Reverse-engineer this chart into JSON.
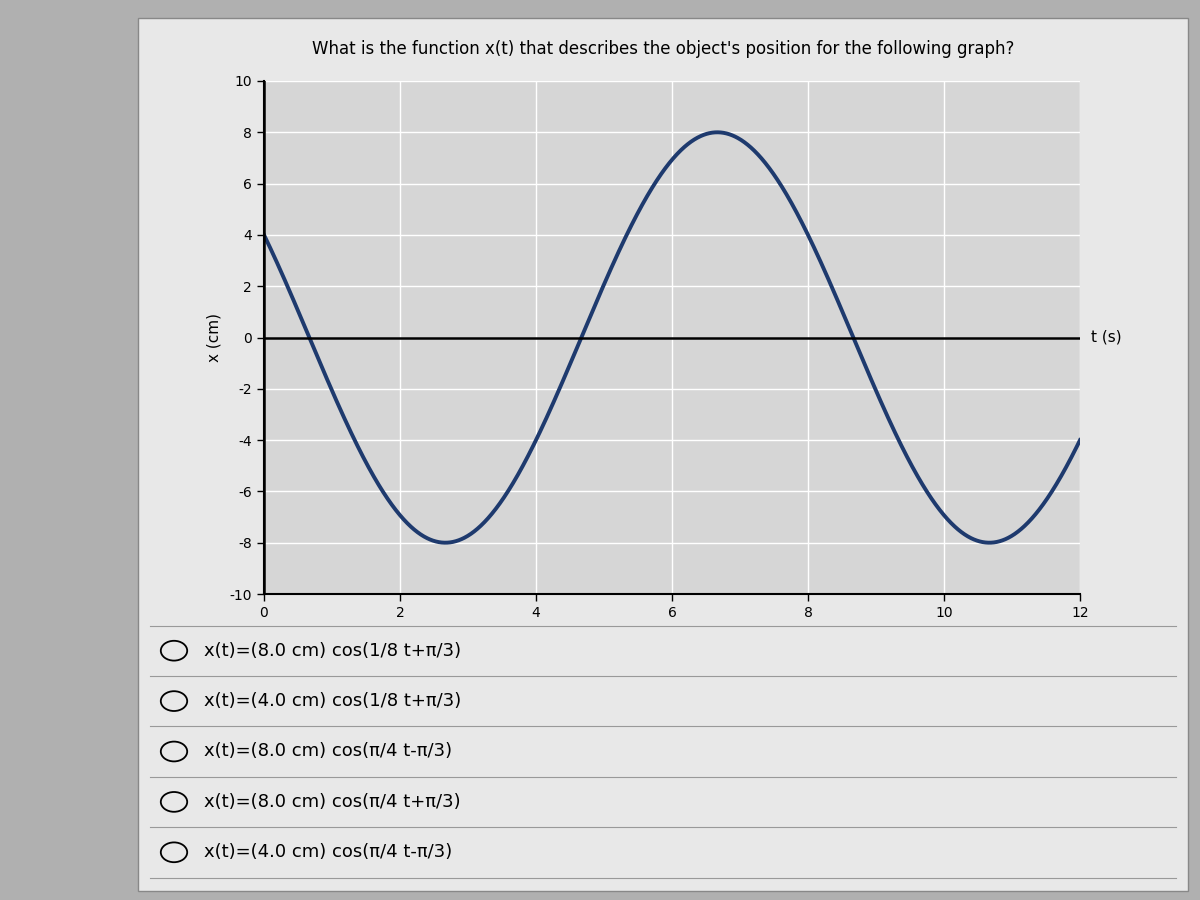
{
  "title": "What is the function x(t) that describes the object's position for the following graph?",
  "title_fontsize": 12,
  "xlabel": "t (s)",
  "ylabel": "x (cm)",
  "xlim": [
    0,
    12
  ],
  "ylim": [
    -10,
    10
  ],
  "xticks": [
    0,
    2,
    4,
    6,
    8,
    10,
    12
  ],
  "yticks": [
    -10,
    -8,
    -6,
    -4,
    -2,
    0,
    2,
    4,
    6,
    8,
    10
  ],
  "amplitude": 8.0,
  "omega": 0.7853981633974483,
  "phi": 1.0471975511965976,
  "curve_color": "#1e3a6e",
  "curve_linewidth": 2.8,
  "t_start": 0,
  "t_end": 12,
  "plot_bg_color": "#d6d6d6",
  "outer_bg": "#b0b0b0",
  "white_panel_bg": "#e8e8e8",
  "grid_color": "#ffffff",
  "axis_color": "#000000",
  "choices": [
    "x(t)=(8.0 cm) cos(1/8 t+π/3)",
    "x(t)=(4.0 cm) cos(1/8 t+π/3)",
    "x(t)=(8.0 cm) cos(π/4 t-π/3)",
    "x(t)=(8.0 cm) cos(π/4 t+π/3)",
    "x(t)=(4.0 cm) cos(π/4 t-π/3)"
  ],
  "choice_fontsize": 13
}
